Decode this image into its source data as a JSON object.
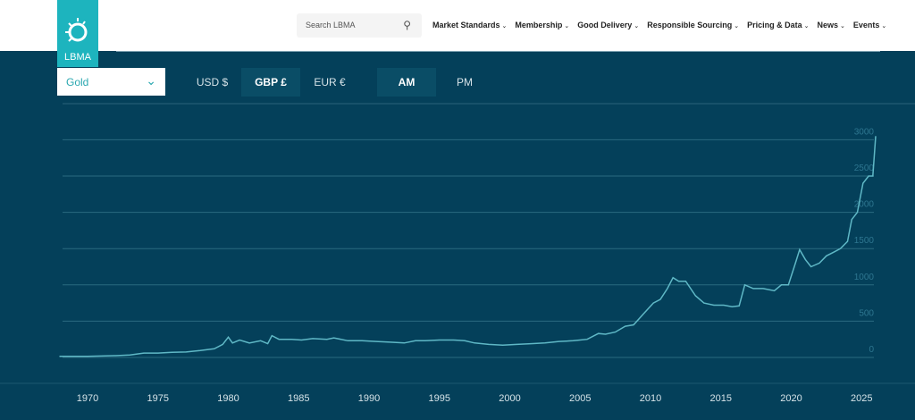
{
  "logo": {
    "text": "LBMA"
  },
  "search": {
    "placeholder": "Search LBMA",
    "icon": "search-icon"
  },
  "nav": [
    "Market Standards",
    "Membership",
    "Good Delivery",
    "Responsible Sourcing",
    "Pricing & Data",
    "News",
    "Events"
  ],
  "metal_select": {
    "value": "Gold"
  },
  "currencies": [
    {
      "label": "USD $",
      "active": false
    },
    {
      "label": "GBP £",
      "active": true
    },
    {
      "label": "EUR €",
      "active": false
    }
  ],
  "times": [
    {
      "label": "AM",
      "active": true
    },
    {
      "label": "PM",
      "active": false
    }
  ],
  "colors": {
    "background": "#04405a",
    "line": "#5fb8c6",
    "brand": "#1db4be"
  },
  "chart_data": {
    "type": "line",
    "xlim": [
      1968,
      2026
    ],
    "ylim": [
      0,
      3000
    ],
    "x_ticks": [
      "1970",
      "1975",
      "1980",
      "1985",
      "1990",
      "1995",
      "2000",
      "2005",
      "2010",
      "2015",
      "2020",
      "2025"
    ],
    "y_ticks": [
      "0",
      "500",
      "1000",
      "1500",
      "2000",
      "2500",
      "3000"
    ],
    "grid": true,
    "series": [
      {
        "x": [
          1968,
          1970,
          1972,
          1973,
          1974,
          1975,
          1976,
          1977,
          1978,
          1979,
          1979.6,
          1980.0,
          1980.3,
          1980.8,
          1981.5,
          1982.3,
          1982.8,
          1983.1,
          1983.6,
          1984.5,
          1985.2,
          1986,
          1987,
          1987.5,
          1988.5,
          1989.5,
          1990.5,
          1991.5,
          1992.5,
          1993.3,
          1994,
          1995,
          1996,
          1996.8,
          1997.5,
          1998.5,
          1999.5,
          2000.5,
          2001.5,
          2002.5,
          2003.5,
          2004.5,
          2005.5,
          2006.3,
          2006.8,
          2007.5,
          2008.2,
          2008.8,
          2009.5,
          2010.2,
          2010.7,
          2011.2,
          2011.6,
          2012.0,
          2012.5,
          2013.2,
          2013.8,
          2014.5,
          2015.2,
          2015.8,
          2016.3,
          2016.7,
          2017.3,
          2018,
          2018.8,
          2019.3,
          2019.8,
          2020.3,
          2020.6,
          2021.0,
          2021.4,
          2022.0,
          2022.5,
          2023.0,
          2023.5,
          2024.0,
          2024.3,
          2024.7,
          2025.1,
          2025.5,
          2025.8,
          2026.0
        ],
        "values": [
          15,
          16,
          25,
          35,
          60,
          60,
          70,
          75,
          95,
          120,
          180,
          280,
          200,
          240,
          200,
          230,
          190,
          300,
          250,
          250,
          240,
          260,
          250,
          270,
          230,
          230,
          220,
          210,
          200,
          230,
          230,
          240,
          240,
          230,
          200,
          180,
          170,
          180,
          190,
          200,
          220,
          230,
          250,
          330,
          320,
          350,
          430,
          450,
          600,
          750,
          800,
          950,
          1100,
          1050,
          1050,
          850,
          750,
          720,
          720,
          700,
          710,
          1000,
          950,
          950,
          920,
          1000,
          1000,
          1300,
          1485,
          1350,
          1250,
          1300,
          1400,
          1450,
          1500,
          1600,
          1900,
          2000,
          2400,
          2500,
          2500,
          3050
        ]
      }
    ]
  }
}
